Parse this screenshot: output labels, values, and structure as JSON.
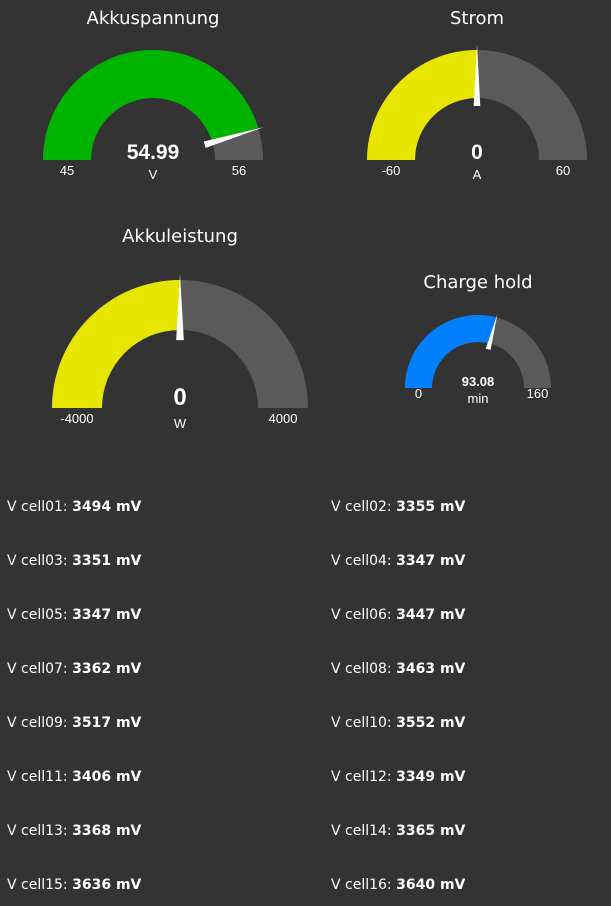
{
  "colors": {
    "background": "#333333",
    "track": "#5a5a5a",
    "green": "#00b400",
    "yellow": "#e6e600",
    "blue": "#0080ff"
  },
  "gauges": {
    "voltage": {
      "title": "Akkuspannung",
      "value": "54.99",
      "value_num": 54.99,
      "unit": "V",
      "min": "45",
      "max": "56",
      "min_num": 45,
      "max_num": 56,
      "fill": "#00b400"
    },
    "current": {
      "title": "Strom",
      "value": "0",
      "value_num": 0,
      "unit": "A",
      "min": "-60",
      "max": "60",
      "min_num": -60,
      "max_num": 60,
      "fill": "#e6e600"
    },
    "power": {
      "title": "Akkuleistung",
      "value": "0",
      "value_num": 0,
      "unit": "W",
      "min": "-4000",
      "max": "4000",
      "min_num": -4000,
      "max_num": 4000,
      "fill": "#e6e600"
    },
    "charge_hold": {
      "title": "Charge hold",
      "value": "93.08",
      "value_num": 93.08,
      "unit": "min",
      "min": "0",
      "max": "160",
      "min_num": 0,
      "max_num": 160,
      "fill": "#0080ff"
    }
  },
  "cells": [
    {
      "label": "V cell01:",
      "value": "3494 mV"
    },
    {
      "label": "V cell02:",
      "value": "3355 mV"
    },
    {
      "label": "V cell03:",
      "value": "3351 mV"
    },
    {
      "label": "V cell04:",
      "value": "3347 mV"
    },
    {
      "label": "V cell05:",
      "value": "3347 mV"
    },
    {
      "label": "V cell06:",
      "value": "3447 mV"
    },
    {
      "label": "V cell07:",
      "value": "3362 mV"
    },
    {
      "label": "V cell08:",
      "value": "3463 mV"
    },
    {
      "label": "V cell09:",
      "value": "3517 mV"
    },
    {
      "label": "V cell10:",
      "value": "3552 mV"
    },
    {
      "label": "V cell11:",
      "value": "3406 mV"
    },
    {
      "label": "V cell12:",
      "value": "3349 mV"
    },
    {
      "label": "V cell13:",
      "value": "3368 mV"
    },
    {
      "label": "V cell14:",
      "value": "3365 mV"
    },
    {
      "label": "V cell15:",
      "value": "3636 mV"
    },
    {
      "label": "V cell16:",
      "value": "3640 mV"
    }
  ]
}
